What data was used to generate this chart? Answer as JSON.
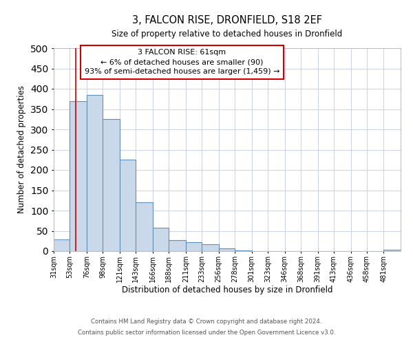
{
  "title": "3, FALCON RISE, DRONFIELD, S18 2EF",
  "subtitle": "Size of property relative to detached houses in Dronfield",
  "xlabel": "Distribution of detached houses by size in Dronfield",
  "ylabel": "Number of detached properties",
  "bar_color": "#c9d9ea",
  "bar_edge_color": "#6090b8",
  "background_color": "#ffffff",
  "grid_color": "#ccd6e6",
  "vline_color": "#cc0000",
  "vline_x": 61,
  "categories": [
    "31sqm",
    "53sqm",
    "76sqm",
    "98sqm",
    "121sqm",
    "143sqm",
    "166sqm",
    "188sqm",
    "211sqm",
    "233sqm",
    "256sqm",
    "278sqm",
    "301sqm",
    "323sqm",
    "346sqm",
    "368sqm",
    "391sqm",
    "413sqm",
    "436sqm",
    "458sqm",
    "481sqm"
  ],
  "bin_edges": [
    31,
    53,
    76,
    98,
    121,
    143,
    166,
    188,
    211,
    233,
    256,
    278,
    301,
    323,
    346,
    368,
    391,
    413,
    436,
    458,
    481
  ],
  "values": [
    28,
    370,
    385,
    325,
    225,
    120,
    58,
    27,
    22,
    17,
    7,
    2,
    0,
    0,
    0,
    0,
    0,
    0,
    0,
    0,
    3
  ],
  "ylim": [
    0,
    500
  ],
  "yticks": [
    0,
    50,
    100,
    150,
    200,
    250,
    300,
    350,
    400,
    450,
    500
  ],
  "annotation_title": "3 FALCON RISE: 61sqm",
  "annotation_line1": "← 6% of detached houses are smaller (90)",
  "annotation_line2": "93% of semi-detached houses are larger (1,459) →",
  "annotation_box_edge": "#cc0000",
  "footer_line1": "Contains HM Land Registry data © Crown copyright and database right 2024.",
  "footer_line2": "Contains public sector information licensed under the Open Government Licence v3.0."
}
